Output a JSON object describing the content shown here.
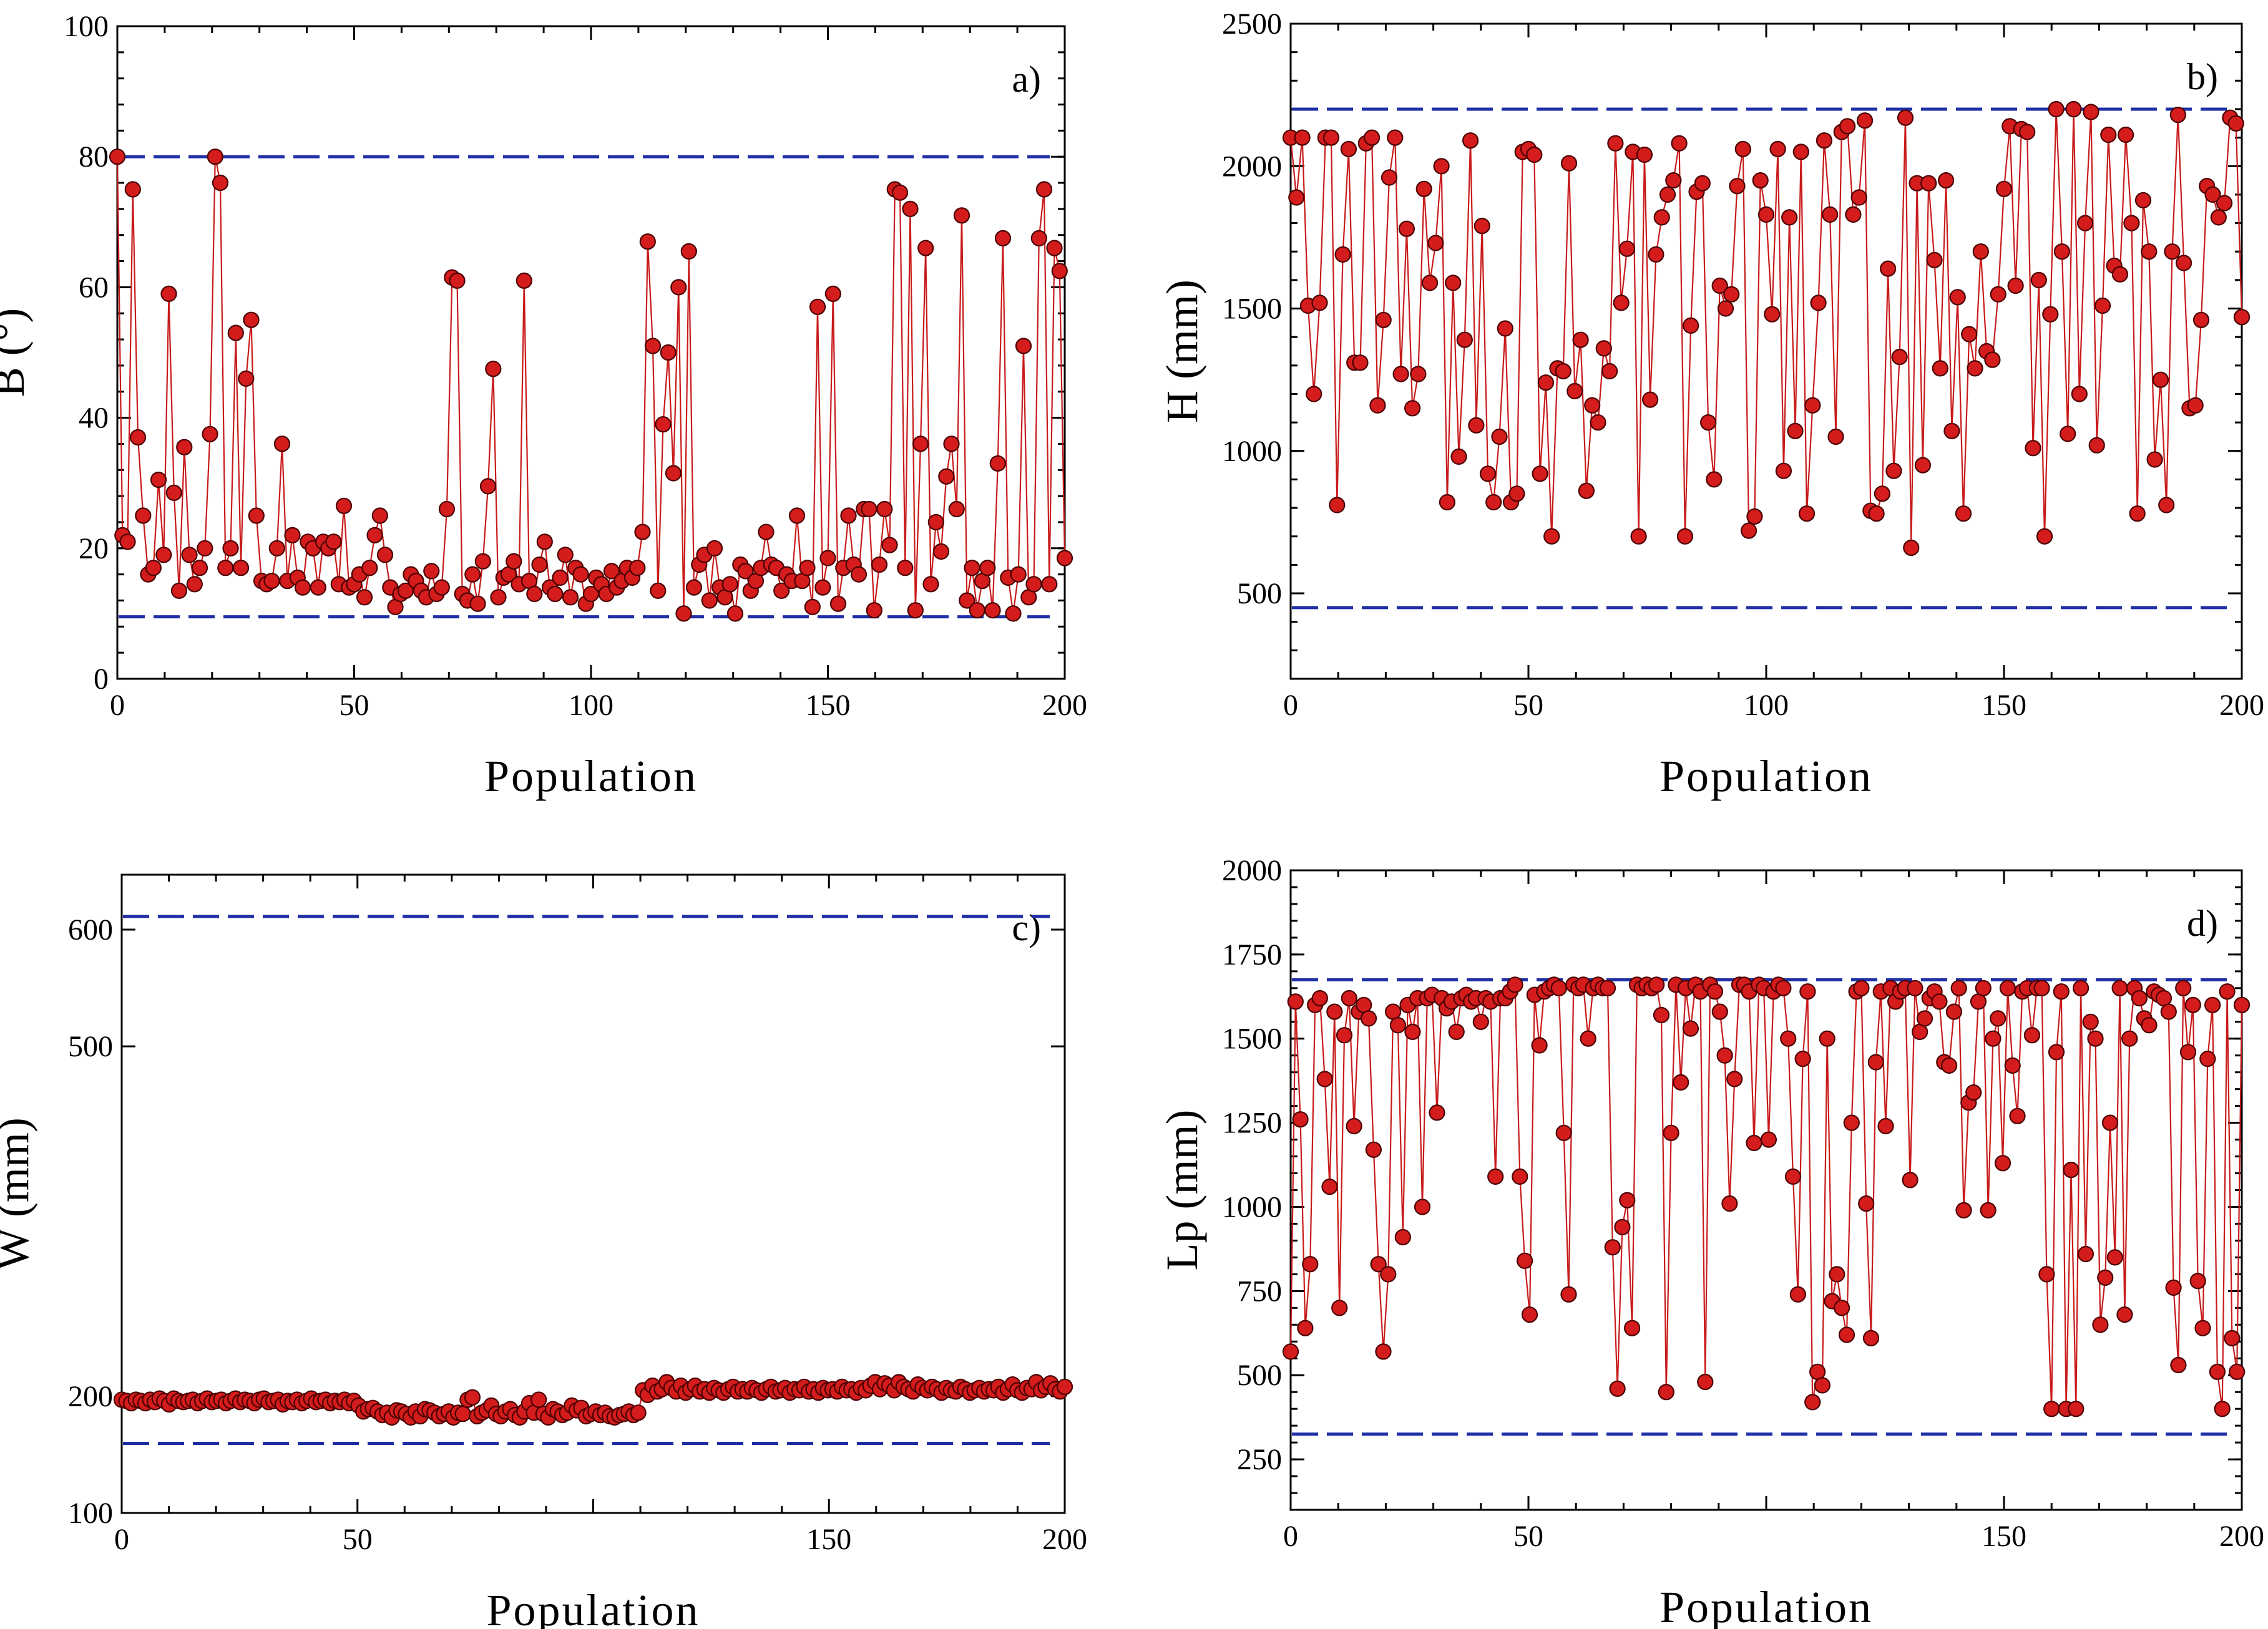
{
  "colors": {
    "series": "#d41c1c",
    "series_edge": "#4a0000",
    "series_line": "#c81a1a",
    "bound_line": "#1f2fa6"
  },
  "chart_data": [
    {
      "panel": "a)",
      "type": "line",
      "xlabel": "Population",
      "ylabel": "B (°)",
      "xlim": [
        0,
        200
      ],
      "ylim": [
        0,
        100
      ],
      "xticks": [
        0,
        50,
        100,
        150,
        200
      ],
      "yticks": [
        0,
        20,
        40,
        60,
        80,
        100
      ],
      "bounds": [
        80,
        9.5
      ],
      "y": [
        80,
        22,
        21,
        75,
        37,
        25,
        16,
        17,
        30.5,
        19,
        59,
        28.5,
        13.5,
        35.5,
        19,
        14.5,
        17,
        20,
        37.5,
        80,
        76,
        17,
        20,
        53,
        17,
        46,
        55,
        25,
        15,
        14.5,
        15,
        20,
        36,
        15,
        22,
        15.5,
        14,
        21,
        20,
        14,
        21,
        20,
        21,
        14.5,
        26.5,
        14,
        14.5,
        16,
        12.5,
        17,
        22,
        25,
        19,
        14,
        11,
        13,
        13.5,
        16,
        15,
        13.5,
        12.5,
        16.5,
        13,
        14,
        26,
        61.5,
        61,
        13,
        12,
        16,
        11.5,
        18,
        29.5,
        47.5,
        12.5,
        15.5,
        16,
        18,
        14.5,
        61,
        15,
        13,
        17.5,
        21,
        14,
        13,
        15.5,
        19,
        12.5,
        17,
        16,
        11.5,
        13,
        15.5,
        14.5,
        13,
        16.5,
        14,
        15,
        17,
        15.5,
        17,
        22.5,
        67,
        51,
        13.5,
        39,
        50,
        31.5,
        60,
        10,
        65.5,
        14,
        17.5,
        19,
        12,
        20,
        14,
        12.5,
        14.5,
        10,
        17.5,
        16.5,
        13.5,
        15,
        17,
        22.5,
        17.5,
        17,
        13.5,
        16,
        15,
        25,
        15,
        17,
        11,
        57,
        14,
        18.5,
        59,
        11.5,
        17,
        25,
        17.5,
        16,
        26,
        26,
        10.5,
        17.5,
        26,
        20.5,
        75,
        74.5,
        17,
        72,
        10.5,
        36,
        66,
        14.5,
        24,
        19.5,
        31,
        36,
        26,
        71,
        12,
        17,
        10.5,
        15,
        17,
        10.5,
        33,
        67.5,
        15.5,
        10,
        16,
        51,
        12.5,
        14.5,
        67.5,
        75,
        14.5,
        66,
        62.5,
        18.5
      ]
    },
    {
      "panel": "b)",
      "type": "line",
      "xlabel": "Population",
      "ylabel": "H (mm)",
      "xlim": [
        0,
        200
      ],
      "ylim": [
        200,
        2500
      ],
      "xticks": [
        0,
        50,
        100,
        150,
        200
      ],
      "yticks": [
        500,
        1000,
        1500,
        2000,
        2500
      ],
      "bounds": [
        2200,
        450
      ],
      "y": [
        2100,
        1890,
        2100,
        1510,
        1200,
        1520,
        2100,
        2100,
        810,
        1690,
        2060,
        1310,
        1310,
        2080,
        2100,
        1160,
        1460,
        1960,
        2100,
        1270,
        1780,
        1150,
        1270,
        1920,
        1590,
        1730,
        2000,
        820,
        1590,
        980,
        1390,
        2090,
        1090,
        1790,
        920,
        820,
        1050,
        1430,
        820,
        850,
        2050,
        2060,
        2040,
        920,
        1240,
        700,
        1290,
        1280,
        2010,
        1210,
        1390,
        860,
        1160,
        1100,
        1360,
        1280,
        2080,
        1520,
        1710,
        2050,
        700,
        2040,
        1180,
        1690,
        1820,
        1900,
        1950,
        2080,
        700,
        1440,
        1910,
        1940,
        1100,
        900,
        1580,
        1500,
        1550,
        1930,
        2060,
        720,
        770,
        1950,
        1830,
        1480,
        2060,
        930,
        1820,
        1070,
        2050,
        780,
        1160,
        1520,
        2090,
        1830,
        1050,
        2120,
        2140,
        1830,
        1890,
        2160,
        790,
        780,
        850,
        1640,
        930,
        1330,
        2170,
        660,
        1940,
        950,
        1940,
        1670,
        1290,
        1950,
        1070,
        1540,
        780,
        1410,
        1290,
        1700,
        1350,
        1320,
        1550,
        1920,
        2140,
        1580,
        2130,
        2120,
        1010,
        1600,
        700,
        1480,
        2200,
        1700,
        1060,
        2200,
        1200,
        1800,
        2190,
        1020,
        1510,
        2110,
        1650,
        1620,
        2110,
        1800,
        780,
        1880,
        1700,
        970,
        1250,
        810,
        1700,
        2180,
        1660,
        1150,
        1160,
        1460,
        1930,
        1900,
        1820,
        1870,
        2170,
        2150,
        1470
      ]
    },
    {
      "panel": "c)",
      "type": "line",
      "xlabel": "Population",
      "ylabel": "W (mm)",
      "xlim": [
        0,
        200
      ],
      "ylim": [
        100,
        650
      ],
      "xticks": [
        0,
        50,
        150,
        200
      ],
      "yticks": [
        100,
        200,
        500,
        600
      ],
      "bounds": [
        612,
        160
      ],
      "y": [
        197,
        196,
        194,
        197,
        196,
        194,
        197,
        195,
        198,
        196,
        193,
        198,
        196,
        195,
        196,
        197,
        194,
        196,
        198,
        195,
        196,
        197,
        194,
        196,
        198,
        195,
        197,
        196,
        194,
        197,
        198,
        195,
        196,
        197,
        193,
        196,
        195,
        197,
        194,
        196,
        198,
        195,
        196,
        197,
        194,
        196,
        195,
        197,
        194,
        196,
        192,
        187,
        189,
        190,
        187,
        184,
        186,
        182,
        188,
        187,
        185,
        182,
        187,
        183,
        189,
        188,
        186,
        183,
        185,
        187,
        182,
        186,
        185,
        197,
        199,
        183,
        186,
        188,
        192,
        185,
        183,
        187,
        189,
        184,
        182,
        187,
        194,
        186,
        197,
        185,
        182,
        189,
        187,
        184,
        186,
        192,
        188,
        190,
        183,
        185,
        187,
        184,
        186,
        183,
        182,
        184,
        185,
        187,
        184,
        186,
        205,
        201,
        209,
        204,
        206,
        212,
        207,
        204,
        209,
        203,
        206,
        209,
        204,
        206,
        203,
        207,
        205,
        203,
        206,
        208,
        204,
        206,
        204,
        207,
        205,
        203,
        206,
        208,
        204,
        205,
        207,
        203,
        206,
        205,
        208,
        204,
        206,
        203,
        207,
        205,
        206,
        204,
        208,
        205,
        206,
        203,
        207,
        205,
        209,
        212,
        206,
        211,
        209,
        205,
        212,
        208,
        206,
        204,
        210,
        207,
        205,
        208,
        206,
        203,
        207,
        205,
        204,
        208,
        206,
        203,
        205,
        207,
        204,
        206,
        205,
        208,
        203,
        206,
        210,
        205,
        203,
        207,
        206,
        212,
        205,
        208,
        211,
        206,
        204,
        208
      ]
    },
    {
      "panel": "d)",
      "type": "line",
      "xlabel": "Population",
      "ylabel": "Lp (mm)",
      "xlim": [
        0,
        200
      ],
      "ylim": [
        100,
        2000
      ],
      "xticks": [
        0,
        50,
        150,
        200
      ],
      "yticks": [
        250,
        500,
        750,
        1000,
        1250,
        1500,
        1750,
        2000
      ],
      "bounds": [
        1675,
        325
      ],
      "y": [
        570,
        1610,
        1260,
        640,
        830,
        1600,
        1620,
        1380,
        1060,
        1580,
        700,
        1510,
        1620,
        1240,
        1580,
        1600,
        1560,
        1170,
        830,
        570,
        800,
        1580,
        1540,
        910,
        1600,
        1520,
        1620,
        1000,
        1620,
        1630,
        1280,
        1620,
        1590,
        1610,
        1520,
        1620,
        1630,
        1610,
        1620,
        1550,
        1620,
        1610,
        1090,
        1620,
        1620,
        1640,
        1660,
        1090,
        840,
        680,
        1630,
        1480,
        1640,
        1650,
        1660,
        1650,
        1220,
        740,
        1660,
        1650,
        1660,
        1500,
        1650,
        1660,
        1650,
        1650,
        880,
        460,
        940,
        1020,
        640,
        1660,
        1650,
        1660,
        1650,
        1660,
        1570,
        450,
        1220,
        1660,
        1370,
        1650,
        1530,
        1660,
        1640,
        480,
        1660,
        1640,
        1580,
        1450,
        1010,
        1380,
        1660,
        1660,
        1640,
        1190,
        1660,
        1650,
        1200,
        1640,
        1660,
        1650,
        1500,
        1090,
        740,
        1440,
        1640,
        420,
        510,
        470,
        1500,
        720,
        800,
        700,
        620,
        1250,
        1640,
        1650,
        1010,
        610,
        1430,
        1640,
        1240,
        1650,
        1610,
        1640,
        1650,
        1080,
        1650,
        1520,
        1560,
        1620,
        1640,
        1610,
        1430,
        1420,
        1580,
        1650,
        990,
        1310,
        1340,
        1610,
        1650,
        990,
        1500,
        1560,
        1130,
        1650,
        1420,
        1270,
        1640,
        1650,
        1510,
        1650,
        1650,
        800,
        400,
        1460,
        1640,
        400,
        1110,
        400,
        1650,
        860,
        1550,
        1500,
        650,
        790,
        1250,
        850,
        1650,
        680,
        1500,
        1650,
        1620,
        1560,
        1540,
        1640,
        1630,
        1620,
        1580,
        760,
        530,
        1650,
        1460,
        1600,
        780,
        640,
        1440,
        1600,
        510,
        400,
        1640,
        610,
        510,
        1600
      ]
    }
  ]
}
